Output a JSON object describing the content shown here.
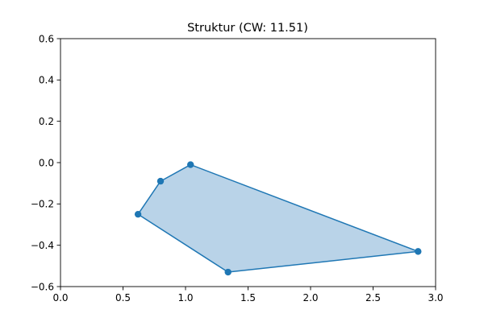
{
  "chart_data": {
    "type": "line",
    "title": "Struktur (CW: 11.51)",
    "xlabel": "",
    "ylabel": "",
    "xlim": [
      0.0,
      3.0
    ],
    "ylim": [
      -0.6,
      0.6
    ],
    "x_ticks": [
      0.0,
      0.5,
      1.0,
      1.5,
      2.0,
      2.5,
      3.0
    ],
    "x_tick_labels": [
      "0.0",
      "0.5",
      "1.0",
      "1.5",
      "2.0",
      "2.5",
      "3.0"
    ],
    "y_ticks": [
      -0.6,
      -0.4,
      -0.2,
      0.0,
      0.2,
      0.4,
      0.6
    ],
    "y_tick_labels": [
      "−0.6",
      "−0.4",
      "−0.2",
      "0.0",
      "0.2",
      "0.4",
      "0.6"
    ],
    "grid": false,
    "series": [
      {
        "closed": true,
        "filled": true,
        "markers": true,
        "points": [
          {
            "x": 1.04,
            "y": -0.01
          },
          {
            "x": 2.86,
            "y": -0.43
          },
          {
            "x": 1.34,
            "y": -0.53
          },
          {
            "x": 0.62,
            "y": -0.25
          },
          {
            "x": 0.8,
            "y": -0.09
          }
        ]
      }
    ],
    "colors": {
      "line": "#1f77b4",
      "fill": "#b9d3e8",
      "marker": "#1f77b4"
    }
  }
}
